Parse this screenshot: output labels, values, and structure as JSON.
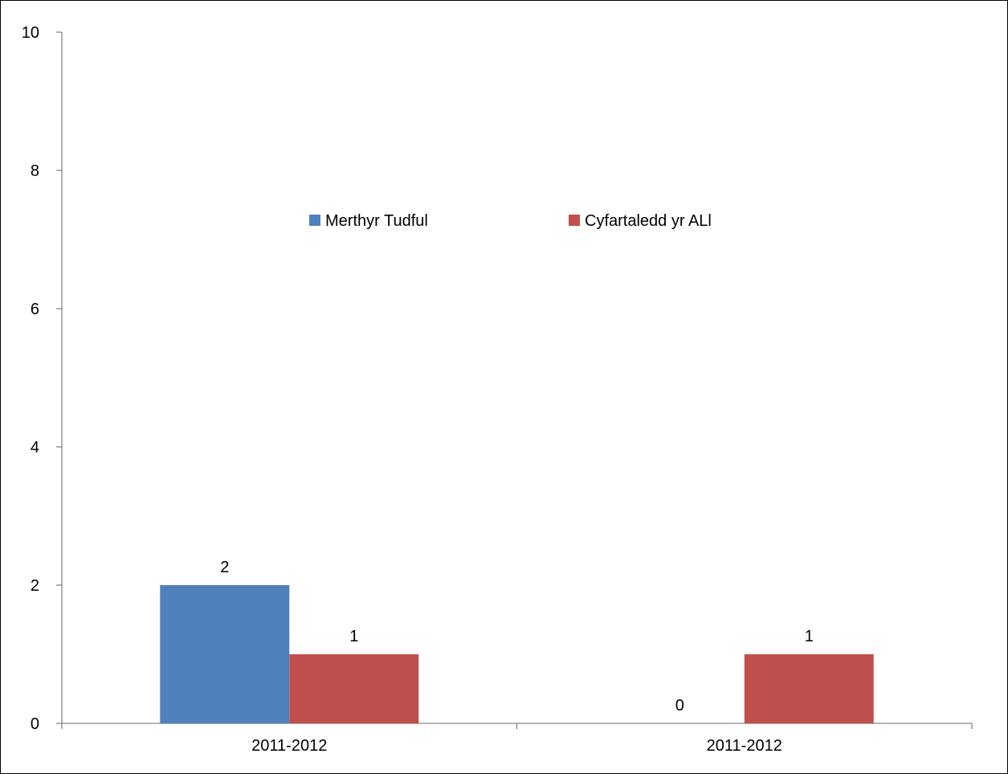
{
  "chart_data": {
    "type": "bar",
    "categories": [
      "2011-2012",
      "2011-2012"
    ],
    "series": [
      {
        "name": "Merthyr Tudful",
        "values": [
          2,
          0
        ],
        "color": "#4F81BD"
      },
      {
        "name": "Cyfartaledd yr ALl",
        "values": [
          1,
          1
        ],
        "color": "#C0504D"
      }
    ],
    "title": "",
    "xlabel": "",
    "ylabel": "",
    "ylim": [
      0,
      10
    ],
    "yticks": [
      "0",
      "2",
      "4",
      "6",
      "8",
      "10"
    ],
    "data_labels": [
      [
        "2",
        "0"
      ],
      [
        "1",
        "1"
      ]
    ],
    "grid": false,
    "legend_position": "inside-top-center"
  }
}
